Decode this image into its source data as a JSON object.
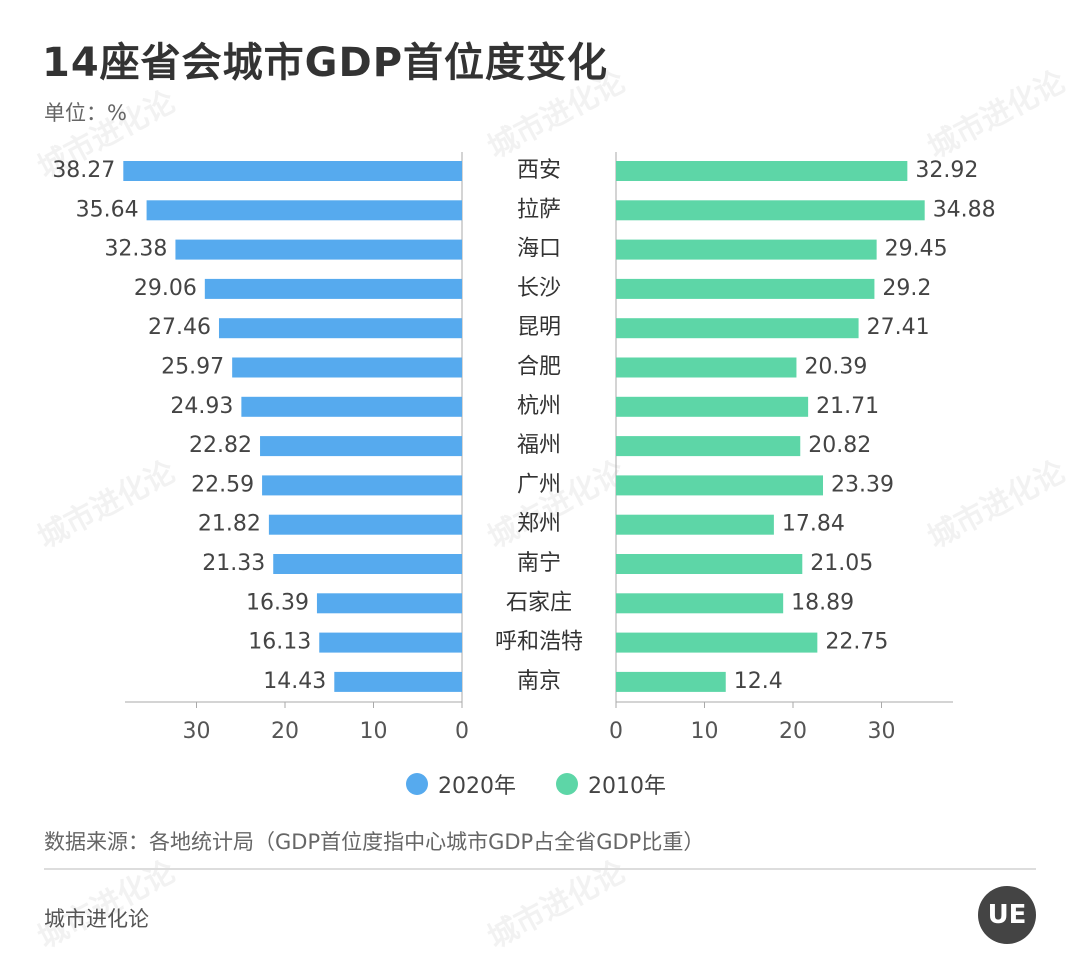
{
  "title": "14座省会城市GDP首位度变化",
  "unit": "单位：%",
  "source": "数据来源：各地统计局（GDP首位度指中心城市GDP占全省GDP比重）",
  "footer": "城市进化论",
  "logo_text": "UE",
  "watermark": "城市进化论",
  "colors": {
    "series_2020": "#56aaee",
    "series_2010": "#5dd6a7",
    "axis": "#aaaaaa"
  },
  "chart_data": {
    "type": "bar",
    "orientation": "horizontal-butterfly",
    "categories": [
      "西安",
      "拉萨",
      "海口",
      "长沙",
      "昆明",
      "合肥",
      "杭州",
      "福州",
      "广州",
      "郑州",
      "南宁",
      "石家庄",
      "呼和浩特",
      "南京"
    ],
    "series": [
      {
        "name": "2020年",
        "side": "left",
        "values": [
          38.27,
          35.64,
          32.38,
          29.06,
          27.46,
          25.97,
          24.93,
          22.82,
          22.59,
          21.82,
          21.33,
          16.39,
          16.13,
          14.43
        ]
      },
      {
        "name": "2010年",
        "side": "right",
        "values": [
          32.92,
          34.88,
          29.45,
          29.2,
          27.41,
          20.39,
          21.71,
          20.82,
          23.39,
          17.84,
          21.05,
          18.89,
          22.75,
          12.4
        ]
      }
    ],
    "left_ticks": [
      30,
      20,
      10,
      0
    ],
    "right_ticks": [
      0,
      10,
      20,
      30
    ],
    "xlim": [
      0,
      38.27
    ],
    "legend_position": "bottom"
  }
}
